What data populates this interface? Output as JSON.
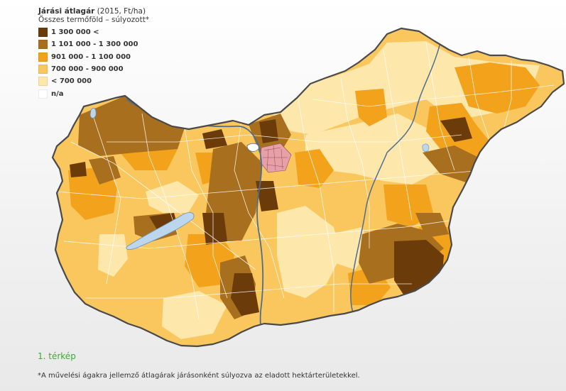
{
  "legend": {
    "title": "Járási átlagár",
    "title_suffix": " (2015, Ft/ha)",
    "subtitle": "Összes termőföld – súlyozott*",
    "items": [
      {
        "label": "1 300 000 <",
        "color": "#6b3c0a"
      },
      {
        "label": "1 101 000 - 1 300 000",
        "color": "#a8701e"
      },
      {
        "label": "901 000 - 1 100 000",
        "color": "#f3a21c"
      },
      {
        "label": "700 000 - 900 000",
        "color": "#f9c75e"
      },
      {
        "label": "< 700 000",
        "color": "#fde7ab"
      },
      {
        "label": "n/a",
        "color": "#ffffff"
      }
    ]
  },
  "caption": "1. térkép",
  "footnote": "*A művelési ágakra jellemző átlagárak járásonként súlyozva az eladott hektárterületekkel.",
  "colors": {
    "category_1": "#6b3c0a",
    "category_2": "#a8701e",
    "category_3": "#f3a21c",
    "category_4": "#f9c75e",
    "category_5": "#fde7ab",
    "budapest": "#e8a0a8",
    "water": "#bcd6ee",
    "caption_green": "#3aaa35"
  }
}
